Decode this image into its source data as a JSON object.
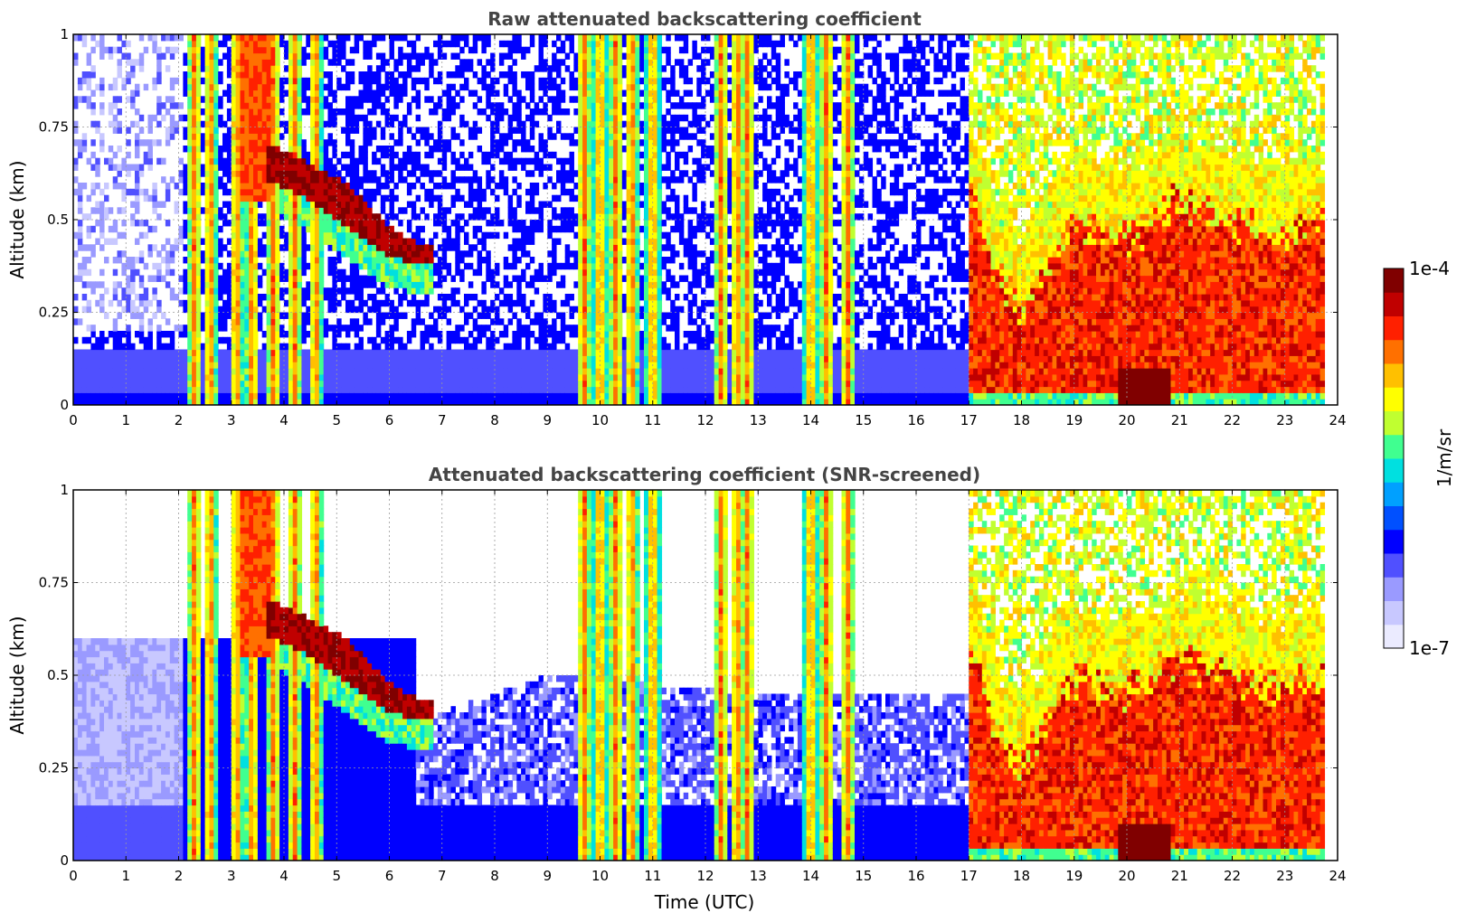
{
  "chart_data": [
    {
      "type": "heatmap",
      "title": "Raw attenuated backscattering coefficient",
      "xlabel": "",
      "ylabel": "Altitude (km)",
      "xlim": [
        0,
        24
      ],
      "ylim": [
        0,
        1
      ],
      "x_ticks": [
        "0",
        "1",
        "2",
        "3",
        "4",
        "5",
        "6",
        "7",
        "8",
        "9",
        "10",
        "11",
        "12",
        "13",
        "14",
        "15",
        "16",
        "17",
        "18",
        "19",
        "20",
        "21",
        "22",
        "23",
        "24"
      ],
      "y_ticks": [
        "0",
        "0.25",
        "0.5",
        "0.75",
        "1"
      ],
      "grid": true,
      "features": {
        "background_noise_level": "blue",
        "low_level_layer_top_km": 0.15,
        "vertical_column_times_utc": [
          2.3,
          2.6,
          3.1,
          3.4,
          3.8,
          4.2,
          4.6,
          9.7,
          10.0,
          10.3,
          10.6,
          11.0,
          12.3,
          12.6,
          12.8,
          14.0,
          14.3,
          14.7
        ],
        "elevated_layer": [
          {
            "t": 3.8,
            "base_km": 0.6,
            "top_km": 0.7
          },
          {
            "t": 4.5,
            "base_km": 0.55,
            "top_km": 0.65
          },
          {
            "t": 5.2,
            "base_km": 0.48,
            "top_km": 0.6
          },
          {
            "t": 6.0,
            "base_km": 0.4,
            "top_km": 0.48
          },
          {
            "t": 6.6,
            "base_km": 0.38,
            "top_km": 0.43
          }
        ],
        "boundary_layer": [
          {
            "t": 17.0,
            "top_km": 0.6
          },
          {
            "t": 17.5,
            "top_km": 0.35
          },
          {
            "t": 18.0,
            "top_km": 0.25
          },
          {
            "t": 19.0,
            "top_km": 0.5
          },
          {
            "t": 20.0,
            "top_km": 0.45
          },
          {
            "t": 21.0,
            "top_km": 0.55
          },
          {
            "t": 22.0,
            "top_km": 0.5
          },
          {
            "t": 23.0,
            "top_km": 0.45
          },
          {
            "t": 23.7,
            "top_km": 0.5
          }
        ]
      }
    },
    {
      "type": "heatmap",
      "title": "Attenuated backscattering coefficient (SNR-screened)",
      "xlabel": "Time (UTC)",
      "ylabel": "Altitude (km)",
      "xlim": [
        0,
        24
      ],
      "ylim": [
        0,
        1
      ],
      "x_ticks": [
        "0",
        "1",
        "2",
        "3",
        "4",
        "5",
        "6",
        "7",
        "8",
        "9",
        "10",
        "11",
        "12",
        "13",
        "14",
        "15",
        "16",
        "17",
        "18",
        "19",
        "20",
        "21",
        "22",
        "23",
        "24"
      ],
      "y_ticks": [
        "0",
        "0.25",
        "0.5",
        "0.75",
        "1"
      ],
      "grid": true,
      "features": {
        "screened_above_km": [
          {
            "t": 0.0,
            "top_km": 0.6
          },
          {
            "t": 2.0,
            "top_km": 0.6
          },
          {
            "t": 7.0,
            "top_km": 0.4
          },
          {
            "t": 9.0,
            "top_km": 0.5
          },
          {
            "t": 13.0,
            "top_km": 0.45
          },
          {
            "t": 16.5,
            "top_km": 0.45
          }
        ]
      }
    }
  ],
  "colorbar": {
    "label": "1/m/sr",
    "max_label": "1e-4",
    "min_label": "1e-7",
    "scale": "log",
    "range": [
      1e-07,
      0.0001
    ],
    "colors": [
      "#ebebff",
      "#c8c8ff",
      "#9a9aff",
      "#5050ff",
      "#0000ff",
      "#0050ff",
      "#00a0ff",
      "#00e0e0",
      "#40ff90",
      "#c0ff30",
      "#ffff00",
      "#ffc000",
      "#ff7000",
      "#ff2000",
      "#c00000",
      "#800000"
    ]
  }
}
